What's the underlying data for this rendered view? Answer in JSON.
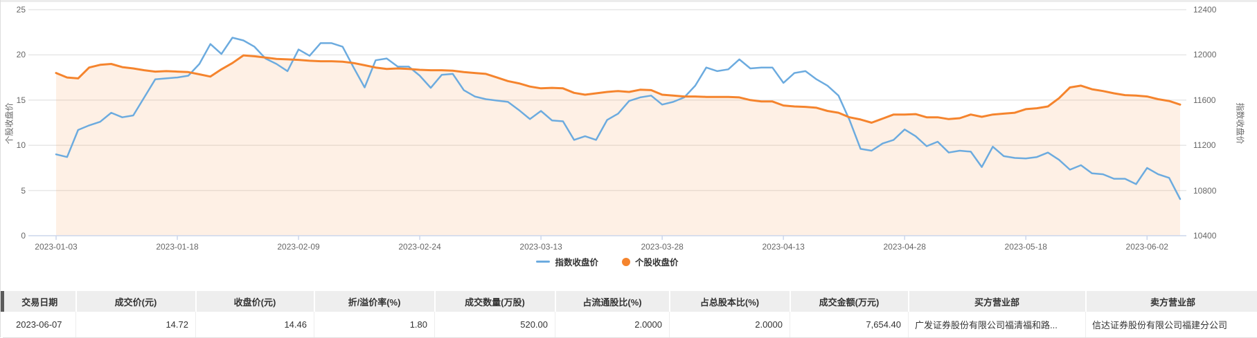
{
  "colors": {
    "index_line": "#6cabdf",
    "stock_line": "#f5842d",
    "stock_fill": "rgba(245,132,45,0.12)",
    "axis_line": "#ccd6eb",
    "gridline": "#e7e7e7",
    "header_bg": "#eeeeee",
    "header_accent": "#5b5b5b"
  },
  "chart": {
    "left_axis_title": "个股收盘价",
    "right_axis_title": "指数收盘价",
    "legend": [
      {
        "label": "指数收盘价",
        "marker": "line"
      },
      {
        "label": "个股收盘价",
        "marker": "circle"
      }
    ]
  },
  "chart_data": {
    "type": "line",
    "title": "",
    "left_ylabel": "个股收盘价",
    "right_ylabel": "指数收盘价",
    "left_ylim": [
      0,
      25
    ],
    "right_ylim": [
      10400,
      12400
    ],
    "left_ticks": [
      "25",
      "20",
      "15",
      "10",
      "5",
      "0"
    ],
    "right_ticks": [
      "12400",
      "12000",
      "11600",
      "11200",
      "10800",
      "10400"
    ],
    "x_tick_labels": [
      "2023-01-03",
      "2023-01-18",
      "2023-02-09",
      "2023-02-24",
      "2023-03-13",
      "2023-03-28",
      "2023-04-13",
      "2023-04-28",
      "2023-05-18",
      "2023-06-02"
    ],
    "x_tick_every_n_points": 11,
    "grid": true,
    "legend_position": "bottom",
    "series": [
      {
        "name": "指数收盘价",
        "axis": "right",
        "style": "line",
        "values": [
          11120,
          11096,
          11336,
          11376,
          11408,
          11488,
          11448,
          11464,
          11624,
          11784,
          11792,
          11800,
          11816,
          11920,
          12096,
          12008,
          12152,
          12128,
          12072,
          11968,
          11920,
          11856,
          12048,
          11992,
          12104,
          12104,
          12072,
          11888,
          11712,
          11952,
          11968,
          11896,
          11896,
          11816,
          11708,
          11824,
          11832,
          11688,
          11632,
          11608,
          11596,
          11584,
          11512,
          11432,
          11504,
          11420,
          11412,
          11248,
          11280,
          11248,
          11424,
          11480,
          11592,
          11624,
          11640,
          11560,
          11584,
          11624,
          11728,
          11888,
          11856,
          11872,
          11960,
          11880,
          11888,
          11888,
          11752,
          11840,
          11856,
          11784,
          11728,
          11640,
          11424,
          11168,
          11152,
          11216,
          11248,
          11340,
          11280,
          11192,
          11232,
          11136,
          11152,
          11144,
          11008,
          11188,
          11104,
          11088,
          11084,
          11096,
          11136,
          11072,
          10984,
          11024,
          10952,
          10944,
          10904,
          10904,
          10856,
          11000,
          10944,
          10912,
          10724
        ]
      },
      {
        "name": "个股收盘价",
        "axis": "left",
        "style": "area",
        "values": [
          18.0,
          17.5,
          17.4,
          18.6,
          18.9,
          19.0,
          18.65,
          18.5,
          18.3,
          18.15,
          18.2,
          18.15,
          18.1,
          17.85,
          17.6,
          18.4,
          19.1,
          19.95,
          19.85,
          19.7,
          19.55,
          19.5,
          19.45,
          19.35,
          19.3,
          19.3,
          19.25,
          19.1,
          18.85,
          18.6,
          18.45,
          18.5,
          18.45,
          18.35,
          18.3,
          18.3,
          18.25,
          18.1,
          18.0,
          17.9,
          17.5,
          17.1,
          16.85,
          16.5,
          16.3,
          16.35,
          16.3,
          15.8,
          15.6,
          15.75,
          15.9,
          16.0,
          15.9,
          16.15,
          16.1,
          15.6,
          15.5,
          15.4,
          15.4,
          15.35,
          15.35,
          15.35,
          15.3,
          15.0,
          14.85,
          14.85,
          14.4,
          14.3,
          14.25,
          14.15,
          13.8,
          13.6,
          13.1,
          12.85,
          12.5,
          12.95,
          13.4,
          13.4,
          13.45,
          13.1,
          13.1,
          12.9,
          13.0,
          13.4,
          13.15,
          13.4,
          13.5,
          13.6,
          14.0,
          14.1,
          14.3,
          15.2,
          16.4,
          16.6,
          16.2,
          16.0,
          15.75,
          15.55,
          15.5,
          15.4,
          15.1,
          14.9,
          14.5
        ]
      }
    ]
  },
  "table": {
    "headers": [
      "交易日期",
      "成交价(元)",
      "收盘价(元)",
      "折/溢价率(%)",
      "成交数量(万股)",
      "占流通股比(%)",
      "占总股本比(%)",
      "成交金额(万元)",
      "买方营业部",
      "卖方营业部"
    ],
    "rows": [
      [
        "2023-06-07",
        "14.72",
        "14.46",
        "1.80",
        "520.00",
        "2.0000",
        "2.0000",
        "7,654.40",
        "广发证券股份有限公司福清福和路...",
        "信达证券股份有限公司福建分公司"
      ]
    ]
  }
}
